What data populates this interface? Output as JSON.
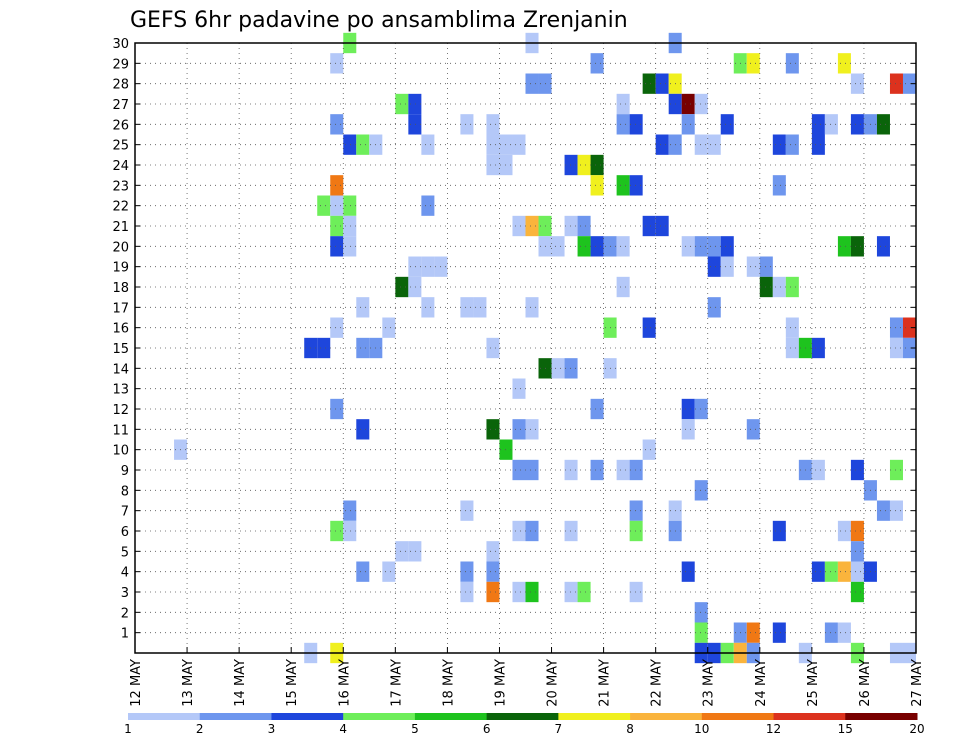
{
  "chart_data": {
    "type": "heatmap",
    "title": "GEFS 6hr padavine po ansamblima Zrenjanin",
    "xlabel": "",
    "ylabel": "",
    "x_range": [
      0,
      60
    ],
    "steps_per_day": 4,
    "y_range": [
      0,
      30
    ],
    "grid": true,
    "x_tick_labels": [
      "12 MAY",
      "13 MAY",
      "14 MAY",
      "15 MAY",
      "16 MAY",
      "17 MAY",
      "18 MAY",
      "19 MAY",
      "20 MAY",
      "21 MAY",
      "22 MAY",
      "23 MAY",
      "24 MAY",
      "25 MAY",
      "26 MAY",
      "27 MAY"
    ],
    "y_tick_labels": [
      "1",
      "2",
      "3",
      "4",
      "5",
      "6",
      "7",
      "8",
      "9",
      "10",
      "11",
      "12",
      "13",
      "14",
      "15",
      "16",
      "17",
      "18",
      "19",
      "20",
      "21",
      "22",
      "23",
      "24",
      "25",
      "26",
      "27",
      "28",
      "29",
      "30"
    ],
    "legend": {
      "placement": "bottom",
      "colors": [
        "#b4c8f8",
        "#6e96ee",
        "#1e46dc",
        "#6eee5a",
        "#1ec31e",
        "#0a640a",
        "#f0f01e",
        "#fab43c",
        "#f07814",
        "#dc321e",
        "#780000"
      ],
      "labels": [
        "1",
        "2",
        "3",
        "4",
        "5",
        "6",
        "7",
        "8",
        "10",
        "12",
        "15",
        "20"
      ]
    },
    "cells": [
      [
        16,
        30,
        3
      ],
      [
        30,
        30,
        0
      ],
      [
        41,
        30,
        1
      ],
      [
        15,
        29,
        0
      ],
      [
        35,
        29,
        1
      ],
      [
        46,
        29,
        3
      ],
      [
        47,
        29,
        6
      ],
      [
        50,
        29,
        1
      ],
      [
        54,
        29,
        6
      ],
      [
        30,
        28,
        1
      ],
      [
        31,
        28,
        1
      ],
      [
        39,
        28,
        5
      ],
      [
        40,
        28,
        2
      ],
      [
        41,
        28,
        6
      ],
      [
        55,
        28,
        0
      ],
      [
        58,
        28,
        9
      ],
      [
        59,
        28,
        1
      ],
      [
        20,
        27,
        3
      ],
      [
        21,
        27,
        2
      ],
      [
        37,
        27,
        0
      ],
      [
        41,
        27,
        2
      ],
      [
        42,
        27,
        10
      ],
      [
        43,
        27,
        0
      ],
      [
        15,
        26,
        1
      ],
      [
        21,
        26,
        2
      ],
      [
        25,
        26,
        0
      ],
      [
        27,
        26,
        0
      ],
      [
        37,
        26,
        1
      ],
      [
        38,
        26,
        2
      ],
      [
        42,
        26,
        1
      ],
      [
        45,
        26,
        2
      ],
      [
        52,
        26,
        2
      ],
      [
        53,
        26,
        0
      ],
      [
        55,
        26,
        2
      ],
      [
        56,
        26,
        1
      ],
      [
        57,
        26,
        5
      ],
      [
        16,
        25,
        2
      ],
      [
        17,
        25,
        3
      ],
      [
        18,
        25,
        0
      ],
      [
        22,
        25,
        0
      ],
      [
        27,
        25,
        0
      ],
      [
        28,
        25,
        0
      ],
      [
        29,
        25,
        0
      ],
      [
        40,
        25,
        2
      ],
      [
        41,
        25,
        1
      ],
      [
        43,
        25,
        0
      ],
      [
        44,
        25,
        0
      ],
      [
        49,
        25,
        2
      ],
      [
        50,
        25,
        1
      ],
      [
        52,
        25,
        2
      ],
      [
        27,
        24,
        0
      ],
      [
        28,
        24,
        0
      ],
      [
        33,
        24,
        2
      ],
      [
        34,
        24,
        6
      ],
      [
        35,
        24,
        5
      ],
      [
        15,
        23,
        8
      ],
      [
        35,
        23,
        6
      ],
      [
        37,
        23,
        4
      ],
      [
        38,
        23,
        2
      ],
      [
        49,
        23,
        1
      ],
      [
        16,
        22,
        3
      ],
      [
        14,
        22,
        3
      ],
      [
        15,
        22,
        0
      ],
      [
        22,
        22,
        1
      ],
      [
        15,
        21,
        3
      ],
      [
        16,
        21,
        0
      ],
      [
        29,
        21,
        0
      ],
      [
        30,
        21,
        7
      ],
      [
        31,
        21,
        3
      ],
      [
        33,
        21,
        0
      ],
      [
        34,
        21,
        1
      ],
      [
        39,
        21,
        2
      ],
      [
        40,
        21,
        2
      ],
      [
        15,
        20,
        2
      ],
      [
        16,
        20,
        0
      ],
      [
        31,
        20,
        0
      ],
      [
        32,
        20,
        0
      ],
      [
        34,
        20,
        4
      ],
      [
        35,
        20,
        2
      ],
      [
        36,
        20,
        1
      ],
      [
        37,
        20,
        0
      ],
      [
        42,
        20,
        0
      ],
      [
        43,
        20,
        1
      ],
      [
        44,
        20,
        1
      ],
      [
        45,
        20,
        2
      ],
      [
        54,
        20,
        4
      ],
      [
        55,
        20,
        5
      ],
      [
        57,
        20,
        2
      ],
      [
        21,
        19,
        0
      ],
      [
        22,
        19,
        0
      ],
      [
        23,
        19,
        0
      ],
      [
        44,
        19,
        2
      ],
      [
        45,
        19,
        0
      ],
      [
        47,
        19,
        0
      ],
      [
        48,
        19,
        1
      ],
      [
        20,
        18,
        5
      ],
      [
        21,
        18,
        0
      ],
      [
        37,
        18,
        0
      ],
      [
        48,
        18,
        5
      ],
      [
        49,
        18,
        0
      ],
      [
        50,
        18,
        3
      ],
      [
        17,
        17,
        0
      ],
      [
        22,
        17,
        0
      ],
      [
        25,
        17,
        0
      ],
      [
        26,
        17,
        0
      ],
      [
        30,
        17,
        0
      ],
      [
        44,
        17,
        1
      ],
      [
        15,
        16,
        0
      ],
      [
        19,
        16,
        0
      ],
      [
        36,
        16,
        3
      ],
      [
        39,
        16,
        2
      ],
      [
        50,
        16,
        0
      ],
      [
        58,
        16,
        1
      ],
      [
        59,
        16,
        9
      ],
      [
        13,
        15,
        2
      ],
      [
        14,
        15,
        2
      ],
      [
        17,
        15,
        1
      ],
      [
        18,
        15,
        1
      ],
      [
        27,
        15,
        0
      ],
      [
        50,
        15,
        0
      ],
      [
        51,
        15,
        4
      ],
      [
        52,
        15,
        2
      ],
      [
        58,
        15,
        0
      ],
      [
        59,
        15,
        1
      ],
      [
        31,
        14,
        5
      ],
      [
        32,
        14,
        0
      ],
      [
        33,
        14,
        1
      ],
      [
        36,
        14,
        0
      ],
      [
        29,
        13,
        0
      ],
      [
        15,
        12,
        1
      ],
      [
        35,
        12,
        1
      ],
      [
        42,
        12,
        2
      ],
      [
        43,
        12,
        1
      ],
      [
        17,
        11,
        2
      ],
      [
        27,
        11,
        5
      ],
      [
        29,
        11,
        1
      ],
      [
        30,
        11,
        0
      ],
      [
        42,
        11,
        0
      ],
      [
        47,
        11,
        1
      ],
      [
        3,
        10,
        0
      ],
      [
        28,
        10,
        4
      ],
      [
        39,
        10,
        0
      ],
      [
        29,
        9,
        1
      ],
      [
        30,
        9,
        1
      ],
      [
        33,
        9,
        0
      ],
      [
        35,
        9,
        1
      ],
      [
        37,
        9,
        0
      ],
      [
        38,
        9,
        1
      ],
      [
        51,
        9,
        1
      ],
      [
        52,
        9,
        0
      ],
      [
        55,
        9,
        2
      ],
      [
        58,
        9,
        3
      ],
      [
        43,
        8,
        1
      ],
      [
        56,
        8,
        1
      ],
      [
        16,
        7,
        1
      ],
      [
        25,
        7,
        0
      ],
      [
        38,
        7,
        1
      ],
      [
        41,
        7,
        0
      ],
      [
        57,
        7,
        1
      ],
      [
        58,
        7,
        0
      ],
      [
        15,
        6,
        3
      ],
      [
        16,
        6,
        0
      ],
      [
        29,
        6,
        0
      ],
      [
        30,
        6,
        1
      ],
      [
        33,
        6,
        0
      ],
      [
        38,
        6,
        3
      ],
      [
        41,
        6,
        1
      ],
      [
        49,
        6,
        2
      ],
      [
        54,
        6,
        0
      ],
      [
        55,
        6,
        8
      ],
      [
        20,
        5,
        0
      ],
      [
        21,
        5,
        0
      ],
      [
        27,
        5,
        0
      ],
      [
        55,
        5,
        1
      ],
      [
        17,
        4,
        1
      ],
      [
        19,
        4,
        0
      ],
      [
        25,
        4,
        1
      ],
      [
        27,
        4,
        1
      ],
      [
        42,
        4,
        2
      ],
      [
        52,
        4,
        2
      ],
      [
        53,
        4,
        3
      ],
      [
        54,
        4,
        7
      ],
      [
        55,
        4,
        0
      ],
      [
        56,
        4,
        2
      ],
      [
        25,
        3,
        0
      ],
      [
        27,
        3,
        8
      ],
      [
        29,
        3,
        0
      ],
      [
        30,
        3,
        4
      ],
      [
        33,
        3,
        0
      ],
      [
        34,
        3,
        3
      ],
      [
        38,
        3,
        0
      ],
      [
        55,
        3,
        4
      ],
      [
        43,
        2,
        1
      ],
      [
        43,
        1,
        3
      ],
      [
        46,
        1,
        1
      ],
      [
        47,
        1,
        8
      ],
      [
        49,
        1,
        2
      ],
      [
        53,
        1,
        1
      ],
      [
        54,
        1,
        0
      ],
      [
        13,
        0,
        0
      ],
      [
        15,
        0,
        6
      ],
      [
        43,
        0,
        2
      ],
      [
        44,
        0,
        2
      ],
      [
        45,
        0,
        3
      ],
      [
        46,
        0,
        7
      ],
      [
        47,
        0,
        1
      ],
      [
        51,
        0,
        0
      ],
      [
        55,
        0,
        3
      ],
      [
        58,
        0,
        0
      ],
      [
        59,
        0,
        0
      ]
    ]
  }
}
